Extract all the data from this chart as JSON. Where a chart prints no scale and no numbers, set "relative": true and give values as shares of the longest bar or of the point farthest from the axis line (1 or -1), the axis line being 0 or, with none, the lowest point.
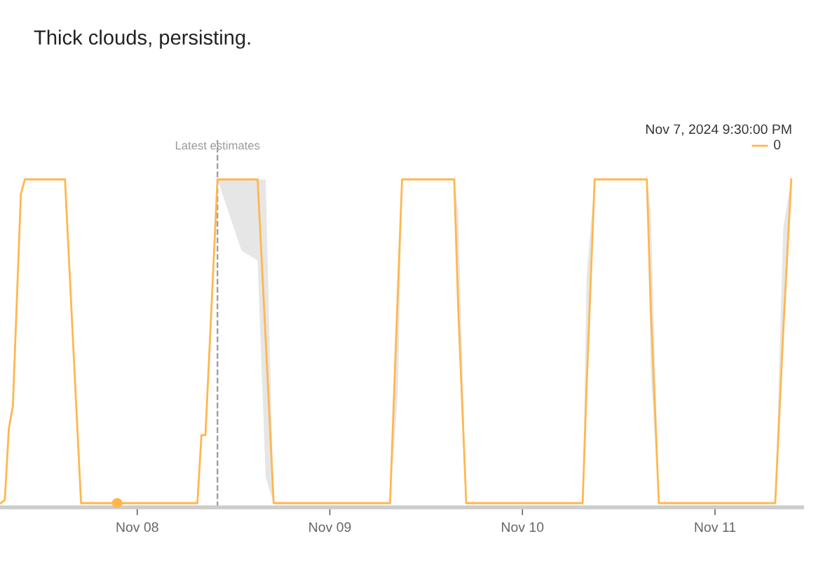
{
  "chart_data": {
    "type": "line",
    "title": "Thick clouds, persisting.",
    "relative": true,
    "xlim": [
      "2024-11-07T06:54",
      "2024-11-11T10:50"
    ],
    "xticks": [
      {
        "value": "2024-11-08",
        "label": "Nov 08"
      },
      {
        "value": "2024-11-09",
        "label": "Nov 09"
      },
      {
        "value": "2024-11-10",
        "label": "Nov 10"
      },
      {
        "value": "2024-11-11",
        "label": "Nov 11"
      }
    ],
    "tick_labels": "x",
    "grid": false,
    "marker": "none",
    "line_style": "solid",
    "ref_lines": [
      {
        "axis": "x",
        "value": "2024-11-08T10:00",
        "label": "Latest estimates",
        "color": "#999999",
        "line_style": "dashed"
      }
    ],
    "annotations": [
      "Nov 7, 2024 9:30:00 PM",
      "0"
    ],
    "series": [
      {
        "color": "#ffb74d",
        "x": [
          "2024-11-07T07:00",
          "2024-11-07T07:30",
          "2024-11-07T08:00",
          "2024-11-07T08:30",
          "2024-11-07T09:30",
          "2024-11-07T10:00",
          "2024-11-07T15:00",
          "2024-11-07T17:00",
          "2024-11-08T07:30",
          "2024-11-08T08:00",
          "2024-11-08T08:30",
          "2024-11-08T10:00",
          "2024-11-08T13:00",
          "2024-11-08T15:00",
          "2024-11-08T16:00",
          "2024-11-08T17:00",
          "2024-11-09T07:30",
          "2024-11-09T08:30",
          "2024-11-09T09:00",
          "2024-11-09T15:30",
          "2024-11-09T16:00",
          "2024-11-09T17:00",
          "2024-11-10T07:30",
          "2024-11-10T08:00",
          "2024-11-10T09:00",
          "2024-11-10T15:30",
          "2024-11-10T16:00",
          "2024-11-10T17:00",
          "2024-11-11T07:30",
          "2024-11-11T08:30",
          "2024-11-11T09:30"
        ],
        "values": [
          0,
          0.01,
          0.23,
          0.3,
          0.955,
          1,
          1,
          0,
          0,
          0.21,
          0.21,
          1,
          1,
          1,
          0.51,
          0,
          0,
          0.67,
          1,
          1,
          0.6,
          0,
          0,
          0.36,
          1,
          1,
          0.6,
          0,
          0,
          0.53,
          1
        ],
        "lower": [
          null,
          null,
          null,
          null,
          null,
          null,
          null,
          null,
          null,
          null,
          null,
          1,
          0.78,
          0.75,
          0.08,
          0,
          0,
          0.35,
          1,
          1,
          0.6,
          0,
          0,
          0.36,
          1,
          1,
          0.4,
          0,
          0,
          0.53,
          1
        ],
        "upper": [
          null,
          null,
          null,
          null,
          null,
          null,
          null,
          null,
          null,
          null,
          null,
          1,
          1,
          1,
          1,
          0,
          0,
          0.67,
          1,
          1,
          0.9,
          0,
          0,
          0.7,
          1,
          1,
          0.9,
          0,
          0,
          0.85,
          1
        ]
      },
      {
        "type": "scatter",
        "color": "#ffb74d",
        "marker": "circle",
        "x": [
          "2024-11-07T21:30"
        ],
        "values": [
          0
        ]
      }
    ]
  }
}
